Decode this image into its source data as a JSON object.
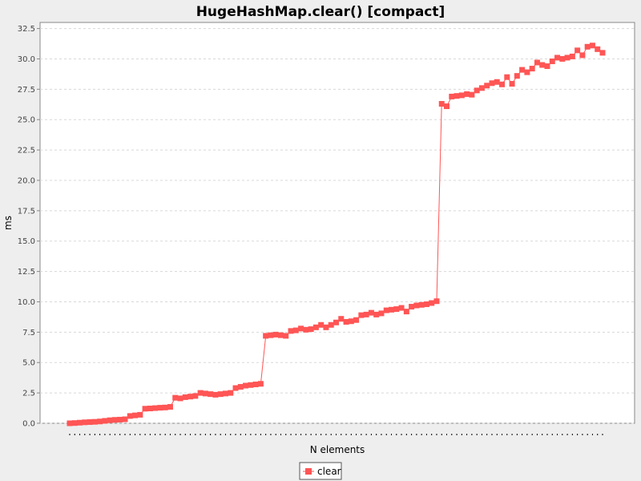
{
  "chart_data": {
    "type": "line",
    "title": "HugeHashMap.clear() [compact]",
    "xlabel": "N elements",
    "ylabel": "ms",
    "ylim": [
      0,
      33.0
    ],
    "yticks": [
      "0.0",
      "2.5",
      "5.0",
      "7.5",
      "10.0",
      "12.5",
      "15.0",
      "17.5",
      "20.0",
      "22.5",
      "25.0",
      "27.5",
      "30.0",
      "32.5"
    ],
    "grid": true,
    "legend_position": "bottom-center",
    "series": [
      {
        "name": "clear",
        "color": "#ff5555",
        "marker": "square",
        "values": [
          0.0,
          0.02,
          0.05,
          0.08,
          0.1,
          0.12,
          0.15,
          0.2,
          0.25,
          0.28,
          0.3,
          0.33,
          0.6,
          0.65,
          0.7,
          1.2,
          1.22,
          1.25,
          1.28,
          1.3,
          1.35,
          2.1,
          2.05,
          2.15,
          2.2,
          2.25,
          2.5,
          2.45,
          2.4,
          2.35,
          2.4,
          2.45,
          2.5,
          2.9,
          3.0,
          3.1,
          3.15,
          3.2,
          3.25,
          7.2,
          7.25,
          7.3,
          7.25,
          7.2,
          7.6,
          7.65,
          7.8,
          7.7,
          7.75,
          7.9,
          8.1,
          7.9,
          8.1,
          8.3,
          8.6,
          8.35,
          8.4,
          8.5,
          8.9,
          8.95,
          9.1,
          8.95,
          9.05,
          9.3,
          9.35,
          9.4,
          9.5,
          9.2,
          9.6,
          9.7,
          9.75,
          9.8,
          9.9,
          10.05,
          26.3,
          26.1,
          26.9,
          26.95,
          27.0,
          27.1,
          27.05,
          27.4,
          27.6,
          27.8,
          28.0,
          28.1,
          27.9,
          28.5,
          27.95,
          28.6,
          29.1,
          28.9,
          29.2,
          29.7,
          29.5,
          29.4,
          29.8,
          30.1,
          30.0,
          30.1,
          30.2,
          30.7,
          30.3,
          31.0,
          31.1,
          30.8,
          30.5
        ]
      }
    ]
  }
}
